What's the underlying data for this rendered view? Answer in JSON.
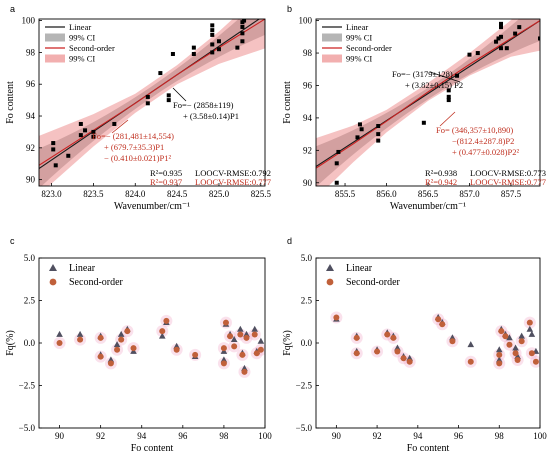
{
  "chart_data": [
    {
      "panel": "a",
      "type": "scatter",
      "xlabel": "Wavenumber/cm⁻¹",
      "ylabel": "Fo content",
      "xlim": [
        822.85,
        825.55
      ],
      "ylim": [
        89.6,
        100.1
      ],
      "xticks": [
        "823.0",
        "823.5",
        "824.0",
        "824.5",
        "825.0",
        "825.5"
      ],
      "yticks": [
        "90",
        "92",
        "94",
        "96",
        "98",
        "100"
      ],
      "legend": [
        "Linear",
        "99% CI",
        "Second-order",
        "99% CI"
      ],
      "legend_position": "top-left",
      "points": [
        [
          823.02,
          92.3
        ],
        [
          823.02,
          91.9
        ],
        [
          823.05,
          90.9
        ],
        [
          823.2,
          91.5
        ],
        [
          823.35,
          92.8
        ],
        [
          823.35,
          93.5
        ],
        [
          823.4,
          93.1
        ],
        [
          823.5,
          92.7
        ],
        [
          823.5,
          93.0
        ],
        [
          823.75,
          93.5
        ],
        [
          824.15,
          95.2
        ],
        [
          824.15,
          94.8
        ],
        [
          824.3,
          96.7
        ],
        [
          824.4,
          95.0
        ],
        [
          824.4,
          95.3
        ],
        [
          824.45,
          97.9
        ],
        [
          824.7,
          97.9
        ],
        [
          824.7,
          98.3
        ],
        [
          824.92,
          98.0
        ],
        [
          824.92,
          98.5
        ],
        [
          824.92,
          99.1
        ],
        [
          824.92,
          99.4
        ],
        [
          824.92,
          99.7
        ],
        [
          825.0,
          98.2
        ],
        [
          825.0,
          98.7
        ],
        [
          825.22,
          98.3
        ],
        [
          825.28,
          98.7
        ],
        [
          825.28,
          99.2
        ],
        [
          825.28,
          99.6
        ],
        [
          825.28,
          99.9
        ],
        [
          825.3,
          100.0
        ]
      ],
      "linear_fit": {
        "x": [
          822.85,
          825.55
        ],
        "y": [
          90.7,
          100.35
        ]
      },
      "second_order_fit": {
        "x": [
          822.85,
          823.5,
          824.0,
          824.5,
          825.0,
          825.55
        ],
        "y": [
          90.9,
          93.1,
          94.8,
          96.6,
          98.3,
          100.1
        ]
      },
      "annotations": {
        "linear_eq_1": "Fo=− (2858±119)",
        "linear_eq_2": "+ (3.58±0.14)P1",
        "second_eq_1": "Fo=− (281,481±14,554)",
        "second_eq_2": "+ (679.7±35.3)P1",
        "second_eq_3": "− (0.410±0.021)P1²",
        "r2_linear": "R²=0.935",
        "rmse_linear": "LOOCV-RMSE:0.792",
        "r2_second": "R²=0.937",
        "rmse_second": "LOOCV-RMSE:0.777"
      }
    },
    {
      "panel": "b",
      "type": "scatter",
      "xlabel": "Wavenumber/cm⁻¹",
      "ylabel": "Fo content",
      "xlim": [
        855.15,
        857.85
      ],
      "ylim": [
        89.8,
        100.1
      ],
      "xticks": [
        "855.5",
        "856.0",
        "856.5",
        "857.0",
        "857.5"
      ],
      "yticks": [
        "90",
        "92",
        "94",
        "96",
        "98",
        "100"
      ],
      "legend": [
        "Linear",
        "99% CI",
        "Second-order",
        "99% CI"
      ],
      "legend_position": "top-left",
      "points": [
        [
          855.4,
          90.0
        ],
        [
          855.4,
          91.2
        ],
        [
          855.42,
          91.9
        ],
        [
          855.65,
          92.8
        ],
        [
          855.7,
          93.3
        ],
        [
          855.68,
          93.6
        ],
        [
          855.9,
          92.6
        ],
        [
          855.9,
          93.0
        ],
        [
          855.9,
          93.5
        ],
        [
          856.45,
          93.7
        ],
        [
          856.75,
          95.1
        ],
        [
          856.75,
          95.3
        ],
        [
          856.75,
          95.7
        ],
        [
          856.85,
          96.6
        ],
        [
          857.0,
          97.9
        ],
        [
          857.1,
          98.0
        ],
        [
          857.32,
          98.7
        ],
        [
          857.35,
          98.9
        ],
        [
          857.38,
          98.3
        ],
        [
          857.38,
          99.0
        ],
        [
          857.38,
          99.6
        ],
        [
          857.38,
          99.8
        ],
        [
          857.45,
          98.3
        ],
        [
          857.55,
          99.2
        ],
        [
          857.6,
          99.6
        ],
        [
          857.85,
          98.9
        ]
      ],
      "linear_fit": {
        "x": [
          855.15,
          857.85
        ],
        "y": [
          91.0,
          100.0
        ]
      },
      "second_order_fit": {
        "x": [
          855.15,
          855.6,
          856.0,
          856.5,
          857.0,
          857.5,
          857.85
        ],
        "y": [
          90.9,
          92.4,
          93.8,
          95.6,
          97.3,
          98.9,
          100.0
        ]
      },
      "annotations": {
        "linear_eq_1": "Fo=− (3179±128)",
        "linear_eq_2": "+ (3.82±0.15) P2",
        "second_eq_1": "Fo= (346,357±10,890)",
        "second_eq_2": "−(812.4±287.8)P2",
        "second_eq_3": "+ (0.477±0.028)P2²",
        "r2_linear": "R²=0.938",
        "rmse_linear": "LOOCV-RMSE:0.773",
        "r2_second": "R²=0.942",
        "rmse_second": "LOOCV-RMSE:0.777"
      }
    },
    {
      "panel": "c",
      "type": "scatter",
      "xlabel": "Fo content",
      "ylabel": "Fq(%)",
      "xlim": [
        89,
        100
      ],
      "ylim": [
        -5,
        5
      ],
      "xticks": [
        "90",
        "92",
        "94",
        "96",
        "98",
        "100"
      ],
      "yticks": [
        "−5.0",
        "−2.5",
        "0.0",
        "2.5",
        "5.0"
      ],
      "legend_position": "top-left",
      "series": [
        {
          "name": "Linear",
          "marker": "triangle",
          "color": "#505060",
          "points": [
            [
              90,
              0.5
            ],
            [
              91,
              0.5
            ],
            [
              92,
              0.4
            ],
            [
              92,
              -0.7
            ],
            [
              92.5,
              -1.0
            ],
            [
              92.8,
              -0.1
            ],
            [
              93,
              0.5
            ],
            [
              93.3,
              0.8
            ],
            [
              93.6,
              -0.5
            ],
            [
              95,
              0.4
            ],
            [
              95.2,
              1.2
            ],
            [
              95.7,
              -0.2
            ],
            [
              96.6,
              -0.8
            ],
            [
              98,
              -0.5
            ],
            [
              98,
              -1.0
            ],
            [
              98.1,
              1.1
            ],
            [
              98.3,
              0.5
            ],
            [
              98.5,
              0.2
            ],
            [
              98.8,
              0.8
            ],
            [
              98.9,
              -0.6
            ],
            [
              99.1,
              0.5
            ],
            [
              99,
              -1.5
            ],
            [
              99.5,
              0.8
            ],
            [
              99.6,
              -0.5
            ],
            [
              99.8,
              0.1
            ]
          ]
        },
        {
          "name": "Second-order",
          "marker": "circle",
          "color": "#c0603a",
          "points": [
            [
              90,
              0.0
            ],
            [
              91,
              0.2
            ],
            [
              92,
              0.3
            ],
            [
              92,
              -0.8
            ],
            [
              92.5,
              -1.2
            ],
            [
              92.8,
              -0.4
            ],
            [
              93,
              0.2
            ],
            [
              93.3,
              0.7
            ],
            [
              93.6,
              -0.3
            ],
            [
              95,
              0.7
            ],
            [
              95.2,
              1.3
            ],
            [
              95.7,
              -0.4
            ],
            [
              96.6,
              -0.7
            ],
            [
              98,
              -0.3
            ],
            [
              98,
              -1.2
            ],
            [
              98.1,
              1.2
            ],
            [
              98.3,
              0.4
            ],
            [
              98.5,
              -0.2
            ],
            [
              98.8,
              0.5
            ],
            [
              98.9,
              -0.7
            ],
            [
              99.1,
              0.3
            ],
            [
              99,
              -1.7
            ],
            [
              99.5,
              0.5
            ],
            [
              99.6,
              -0.6
            ],
            [
              99.8,
              -0.4
            ]
          ]
        }
      ]
    },
    {
      "panel": "d",
      "type": "scatter",
      "xlabel": "Fo content",
      "ylabel": "Fq(%)",
      "xlim": [
        89,
        100
      ],
      "ylim": [
        -5,
        5
      ],
      "xticks": [
        "90",
        "92",
        "94",
        "96",
        "98",
        "100"
      ],
      "yticks": [
        "−5.0",
        "−2.5",
        "0.0",
        "2.5",
        "5.0"
      ],
      "legend_position": "top-left",
      "series": [
        {
          "name": "Linear",
          "marker": "triangle",
          "color": "#505060",
          "points": [
            [
              90,
              1.4
            ],
            [
              91,
              0.4
            ],
            [
              91,
              -0.5
            ],
            [
              92,
              -0.4
            ],
            [
              92.5,
              0.6
            ],
            [
              92.8,
              0.4
            ],
            [
              93,
              -0.3
            ],
            [
              93.3,
              -0.8
            ],
            [
              93.6,
              -0.9
            ],
            [
              95,
              1.5
            ],
            [
              95.2,
              1.2
            ],
            [
              95.7,
              0.3
            ],
            [
              96.6,
              -0.1
            ],
            [
              98,
              -0.4
            ],
            [
              98,
              -1.0
            ],
            [
              98.1,
              0.8
            ],
            [
              98.3,
              0.5
            ],
            [
              98.5,
              0.3
            ],
            [
              98.8,
              -0.3
            ],
            [
              98.9,
              -0.8
            ],
            [
              99.1,
              0.4
            ],
            [
              99.5,
              0.8
            ],
            [
              99.6,
              0.5
            ],
            [
              99.8,
              -0.5
            ]
          ]
        },
        {
          "name": "Second-order",
          "marker": "circle",
          "color": "#c0603a",
          "points": [
            [
              90,
              1.5
            ],
            [
              91,
              0.3
            ],
            [
              91,
              -0.6
            ],
            [
              92,
              -0.5
            ],
            [
              92.5,
              0.5
            ],
            [
              92.8,
              0.3
            ],
            [
              93,
              -0.5
            ],
            [
              93.3,
              -0.9
            ],
            [
              93.6,
              -1.1
            ],
            [
              95,
              1.4
            ],
            [
              95.2,
              1.1
            ],
            [
              95.7,
              0.1
            ],
            [
              96.6,
              -1.1
            ],
            [
              98,
              -0.7
            ],
            [
              98,
              -1.2
            ],
            [
              98.1,
              0.7
            ],
            [
              98.3,
              0.4
            ],
            [
              98.5,
              -0.1
            ],
            [
              98.8,
              -0.6
            ],
            [
              98.9,
              -1.0
            ],
            [
              99.1,
              0.1
            ],
            [
              99.5,
              1.2
            ],
            [
              99.6,
              -0.6
            ],
            [
              99.8,
              -1.1
            ]
          ]
        }
      ]
    }
  ]
}
